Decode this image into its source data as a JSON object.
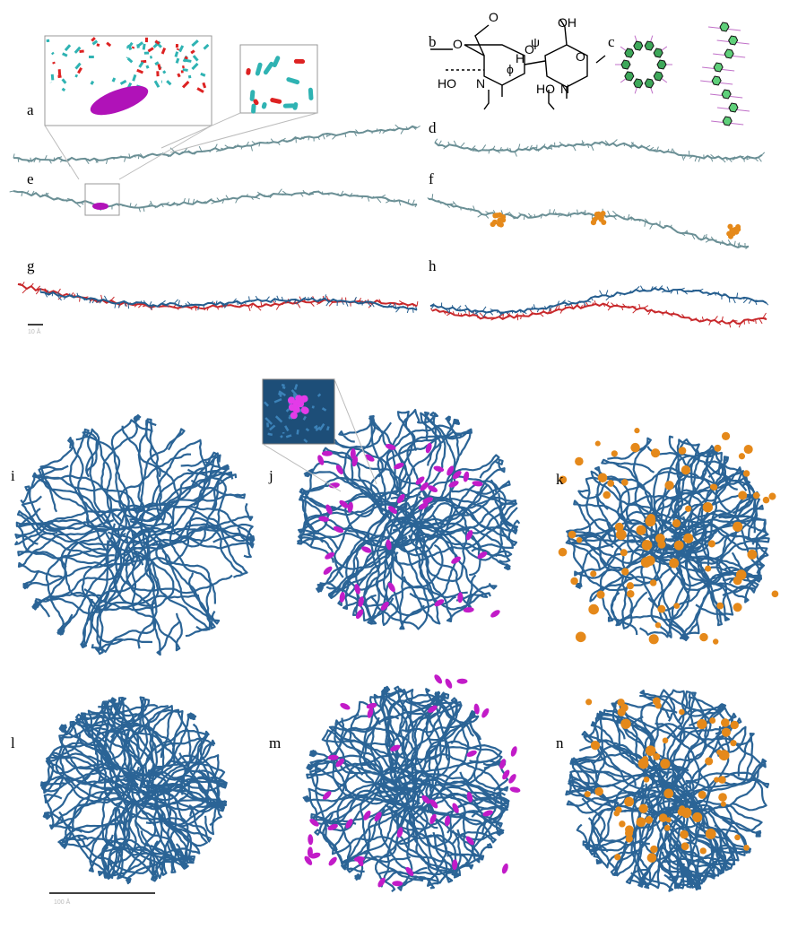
{
  "panels": [
    {
      "label": "a"
    },
    {
      "label": "b"
    },
    {
      "label": "c"
    },
    {
      "label": "d"
    },
    {
      "label": "e"
    },
    {
      "label": "f"
    },
    {
      "label": "g"
    },
    {
      "label": "h"
    },
    {
      "label": "i"
    },
    {
      "label": "j"
    },
    {
      "label": "k"
    },
    {
      "label": "l"
    },
    {
      "label": "m"
    },
    {
      "label": "n"
    }
  ],
  "structure_labels": [
    "O",
    "H",
    "O",
    "OH",
    "O",
    "O",
    "ψ",
    "ϕ",
    "HO",
    "N",
    "HO",
    "N"
  ],
  "scale_bars": [
    "10 Å",
    "100 Å"
  ]
}
